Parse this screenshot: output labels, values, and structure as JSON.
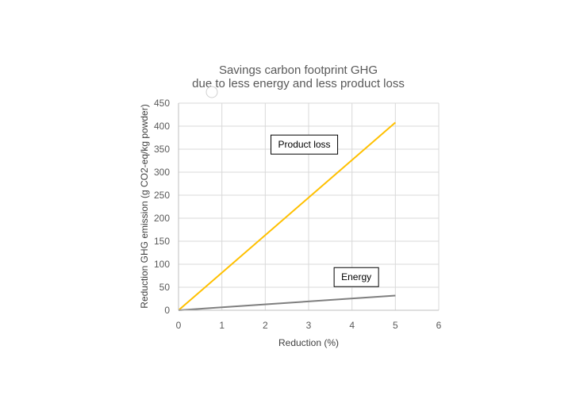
{
  "chart_data": {
    "type": "line",
    "title": [
      "Savings carbon footprint GHG",
      "due to less energy and less product loss"
    ],
    "xlabel": "Reduction (%)",
    "ylabel": "Reduction GHG emission (g CO2-eq/kg powder)",
    "xlim": [
      0,
      6
    ],
    "ylim": [
      0,
      450
    ],
    "xticks": [
      0,
      1,
      2,
      3,
      4,
      5,
      6
    ],
    "yticks": [
      0,
      50,
      100,
      150,
      200,
      250,
      300,
      350,
      400,
      450
    ],
    "grid": true,
    "series": [
      {
        "name": "Product loss",
        "color": "#FFC000",
        "x": [
          0,
          5
        ],
        "y": [
          0,
          408
        ],
        "label_at": [
          2.9,
          360
        ]
      },
      {
        "name": "Energy",
        "color": "#7F7F7F",
        "x": [
          0,
          5
        ],
        "y": [
          0,
          32
        ],
        "label_at": [
          4.1,
          72
        ]
      }
    ]
  }
}
